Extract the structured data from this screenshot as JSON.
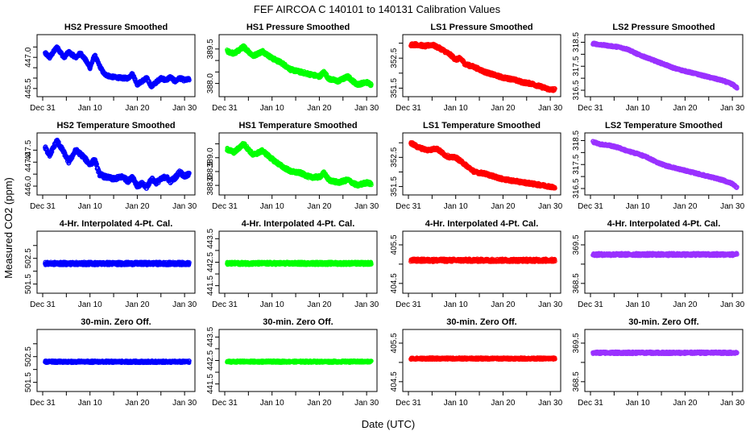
{
  "figure": {
    "title": "FEF   AIRCOA C   140101 to 140131   Calibration Values",
    "xlabel": "Date (UTC)",
    "ylabel": "Measured CO2 (ppm)"
  },
  "colors": {
    "HS2": "#0000ff",
    "HS1": "#00ff00",
    "LS1": "#ff0000",
    "LS2": "#9a32ff"
  },
  "x_axis": {
    "domain_days": [
      0,
      31
    ],
    "ticks": [
      {
        "day": 0,
        "label": "Dec 31"
      },
      {
        "day": 10,
        "label": "Jan 10"
      },
      {
        "day": 20,
        "label": "Jan 20"
      },
      {
        "day": 30,
        "label": "Jan 30"
      }
    ],
    "minor_tick_days": [
      5,
      15,
      25
    ]
  },
  "chart_data": [
    {
      "type": "scatter",
      "title": "HS2 Pressure Smoothed",
      "series": "HS2",
      "ylim": [
        445.3,
        447.9
      ],
      "yticks": [
        445.5,
        447.0
      ],
      "yticklabels": [
        "445.5",
        "447.0"
      ],
      "extra_yticks": [
        446.0,
        446.5,
        447.5
      ],
      "trend": [
        [
          0.5,
          447.2
        ],
        [
          1.5,
          447.0
        ],
        [
          3,
          447.5
        ],
        [
          4.5,
          447.0
        ],
        [
          5.5,
          447.25
        ],
        [
          7,
          447.0
        ],
        [
          8,
          447.2
        ],
        [
          9,
          446.9
        ],
        [
          10,
          446.5
        ],
        [
          11,
          447.1
        ],
        [
          12,
          446.6
        ],
        [
          13,
          446.2
        ],
        [
          14,
          446.1
        ],
        [
          15,
          446.05
        ],
        [
          17,
          446.0
        ],
        [
          18,
          446.0
        ],
        [
          19,
          446.2
        ],
        [
          20,
          445.7
        ],
        [
          21,
          445.85
        ],
        [
          22,
          446.0
        ],
        [
          23,
          445.6
        ],
        [
          24,
          445.8
        ],
        [
          25,
          446.0
        ],
        [
          26,
          445.9
        ],
        [
          27,
          446.05
        ],
        [
          28,
          445.85
        ],
        [
          29,
          446.0
        ],
        [
          30,
          445.9
        ],
        [
          31,
          445.95
        ]
      ],
      "noise": 0.07
    },
    {
      "type": "scatter",
      "title": "HS1 Pressure Smoothed",
      "series": "HS1",
      "ylim": [
        387.6,
        389.95
      ],
      "yticks": [
        388.0,
        389.5
      ],
      "yticklabels": [
        "388.0",
        "389.5"
      ],
      "extra_yticks": [
        388.5,
        389.0
      ],
      "trend": [
        [
          0.5,
          389.4
        ],
        [
          2,
          389.3
        ],
        [
          4,
          389.6
        ],
        [
          6,
          389.2
        ],
        [
          8,
          389.4
        ],
        [
          10,
          389.1
        ],
        [
          12,
          388.9
        ],
        [
          14,
          388.6
        ],
        [
          16,
          388.5
        ],
        [
          18,
          388.4
        ],
        [
          20,
          388.3
        ],
        [
          21,
          388.5
        ],
        [
          22,
          388.2
        ],
        [
          24,
          388.1
        ],
        [
          26,
          388.3
        ],
        [
          28,
          387.95
        ],
        [
          30,
          388.05
        ],
        [
          31,
          387.95
        ]
      ],
      "noise": 0.07
    },
    {
      "type": "scatter",
      "title": "LS1 Pressure Smoothed",
      "series": "LS1",
      "ylim": [
        351.35,
        353.15
      ],
      "yticks": [
        351.5,
        352.5
      ],
      "yticklabels": [
        "351.5",
        "352.5"
      ],
      "extra_yticks": [
        352.0,
        353.0
      ],
      "trend": [
        [
          0.5,
          352.95
        ],
        [
          2,
          352.95
        ],
        [
          3.5,
          352.9
        ],
        [
          5,
          352.95
        ],
        [
          7,
          352.8
        ],
        [
          9,
          352.6
        ],
        [
          10,
          352.45
        ],
        [
          11,
          352.5
        ],
        [
          12,
          352.3
        ],
        [
          14,
          352.2
        ],
        [
          16,
          352.05
        ],
        [
          18,
          351.95
        ],
        [
          20,
          351.85
        ],
        [
          22,
          351.8
        ],
        [
          24,
          351.7
        ],
        [
          26,
          351.65
        ],
        [
          28,
          351.55
        ],
        [
          30,
          351.45
        ],
        [
          31,
          351.45
        ]
      ],
      "noise": 0.05
    },
    {
      "type": "scatter",
      "title": "LS2 Pressure Smoothed",
      "series": "LS2",
      "ylim": [
        316.4,
        318.65
      ],
      "yticks": [
        316.5,
        317.5,
        318.5
      ],
      "yticklabels": [
        "316.5",
        "317.5",
        "318.5"
      ],
      "extra_yticks": [
        317.0,
        318.0
      ],
      "trend": [
        [
          0.5,
          318.45
        ],
        [
          2,
          318.4
        ],
        [
          4,
          318.35
        ],
        [
          6,
          318.3
        ],
        [
          8,
          318.2
        ],
        [
          10,
          318.0
        ],
        [
          12,
          317.85
        ],
        [
          14,
          317.7
        ],
        [
          16,
          317.55
        ],
        [
          18,
          317.4
        ],
        [
          20,
          317.3
        ],
        [
          22,
          317.2
        ],
        [
          24,
          317.1
        ],
        [
          26,
          317.0
        ],
        [
          28,
          316.9
        ],
        [
          30,
          316.75
        ],
        [
          31,
          316.6
        ]
      ],
      "noise": 0.04
    },
    {
      "type": "scatter",
      "title": "HS2 Temperature Smoothed",
      "series": "HS2",
      "ylim": [
        445.8,
        448.05
      ],
      "yticks": [
        446.0,
        447.0,
        447.5
      ],
      "yticklabels": [
        "446.0",
        "447.0",
        "447.5"
      ],
      "extra_yticks": [
        446.5
      ],
      "trend": [
        [
          0.5,
          447.6
        ],
        [
          1.5,
          447.3
        ],
        [
          3,
          447.9
        ],
        [
          4.5,
          447.4
        ],
        [
          5.5,
          447.0
        ],
        [
          7,
          447.5
        ],
        [
          8.5,
          447.25
        ],
        [
          10,
          446.9
        ],
        [
          11,
          447.1
        ],
        [
          12,
          446.5
        ],
        [
          13,
          446.4
        ],
        [
          15,
          446.3
        ],
        [
          17,
          446.4
        ],
        [
          18,
          446.2
        ],
        [
          19,
          446.4
        ],
        [
          20,
          446.0
        ],
        [
          21,
          446.1
        ],
        [
          22,
          445.95
        ],
        [
          23,
          446.3
        ],
        [
          24,
          446.15
        ],
        [
          26,
          446.4
        ],
        [
          27,
          446.2
        ],
        [
          28,
          446.35
        ],
        [
          29,
          446.6
        ],
        [
          30,
          446.4
        ],
        [
          31,
          446.5
        ]
      ],
      "noise": 0.08
    },
    {
      "type": "scatter",
      "title": "HS1 Temperature Smoothed",
      "series": "HS1",
      "ylim": [
        387.8,
        389.75
      ],
      "yticks": [
        388.0,
        388.5,
        389.0
      ],
      "yticklabels": [
        "388.0",
        "388.5",
        "389.0"
      ],
      "extra_yticks": [
        389.5
      ],
      "trend": [
        [
          0.5,
          389.3
        ],
        [
          2,
          389.2
        ],
        [
          4,
          389.5
        ],
        [
          6,
          389.1
        ],
        [
          8,
          389.25
        ],
        [
          10,
          388.95
        ],
        [
          12,
          388.7
        ],
        [
          14,
          388.5
        ],
        [
          16,
          388.45
        ],
        [
          18,
          388.3
        ],
        [
          20,
          388.3
        ],
        [
          21,
          388.45
        ],
        [
          22,
          388.2
        ],
        [
          24,
          388.1
        ],
        [
          26,
          388.2
        ],
        [
          28,
          388.0
        ],
        [
          30,
          388.1
        ],
        [
          31,
          388.05
        ]
      ],
      "noise": 0.06
    },
    {
      "type": "scatter",
      "title": "LS1 Temperature Smoothed",
      "series": "LS1",
      "ylim": [
        351.35,
        353.2
      ],
      "yticks": [
        351.5,
        352.5
      ],
      "yticklabels": [
        "351.5",
        "352.5"
      ],
      "extra_yticks": [
        352.0,
        353.0
      ],
      "trend": [
        [
          0.5,
          353.0
        ],
        [
          2,
          352.85
        ],
        [
          4,
          352.75
        ],
        [
          6,
          352.8
        ],
        [
          8,
          352.55
        ],
        [
          9,
          352.5
        ],
        [
          10,
          352.5
        ],
        [
          12,
          352.25
        ],
        [
          14,
          352.0
        ],
        [
          16,
          351.95
        ],
        [
          18,
          351.85
        ],
        [
          20,
          351.75
        ],
        [
          22,
          351.7
        ],
        [
          24,
          351.65
        ],
        [
          26,
          351.6
        ],
        [
          28,
          351.55
        ],
        [
          30,
          351.5
        ],
        [
          31,
          351.45
        ]
      ],
      "noise": 0.05
    },
    {
      "type": "scatter",
      "title": "LS2 Temperature Smoothed",
      "series": "LS2",
      "ylim": [
        316.4,
        318.65
      ],
      "yticks": [
        316.5,
        317.5,
        318.5
      ],
      "yticklabels": [
        "316.5",
        "317.5",
        "318.5"
      ],
      "extra_yticks": [
        317.0,
        318.0
      ],
      "trend": [
        [
          0.5,
          318.45
        ],
        [
          2,
          318.35
        ],
        [
          4,
          318.3
        ],
        [
          6,
          318.2
        ],
        [
          8,
          318.05
        ],
        [
          10,
          317.95
        ],
        [
          12,
          317.8
        ],
        [
          14,
          317.6
        ],
        [
          16,
          317.45
        ],
        [
          18,
          317.35
        ],
        [
          20,
          317.25
        ],
        [
          22,
          317.15
        ],
        [
          24,
          317.05
        ],
        [
          26,
          316.95
        ],
        [
          28,
          316.85
        ],
        [
          30,
          316.7
        ],
        [
          31,
          316.55
        ]
      ],
      "noise": 0.04
    },
    {
      "type": "scatter",
      "title": "4-Hr. Interpolated 4-Pt. Cal.",
      "series": "HS2",
      "ylim": [
        501.3,
        503.4
      ],
      "yticks": [
        501.5,
        502.5
      ],
      "yticklabels": [
        "501.5",
        "502.5"
      ],
      "extra_yticks": [
        502.0,
        503.0
      ],
      "trend": [
        [
          0.5,
          502.3
        ],
        [
          31,
          502.3
        ]
      ],
      "noise": 0.06
    },
    {
      "type": "scatter",
      "title": "4-Hr. Interpolated 4-Pt. Cal.",
      "series": "HS1",
      "ylim": [
        441.35,
        443.65
      ],
      "yticks": [
        441.5,
        442.5,
        443.5
      ],
      "yticklabels": [
        "441.5",
        "442.5",
        "443.5"
      ],
      "extra_yticks": [
        442.0,
        443.0
      ],
      "trend": [
        [
          0.5,
          442.45
        ],
        [
          31,
          442.45
        ]
      ],
      "noise": 0.06
    },
    {
      "type": "scatter",
      "title": "4-Hr. Interpolated 4-Pt. Cal.",
      "series": "LS1",
      "ylim": [
        404.35,
        405.75
      ],
      "yticks": [
        404.5,
        405.5
      ],
      "yticklabels": [
        "404.5",
        "405.5"
      ],
      "extra_yticks": [
        405.0
      ],
      "trend": [
        [
          0.5,
          405.1
        ],
        [
          31,
          405.1
        ]
      ],
      "noise": 0.04
    },
    {
      "type": "scatter",
      "title": "4-Hr. Interpolated 4-Pt. Cal.",
      "series": "LS2",
      "ylim": [
        368.35,
        369.75
      ],
      "yticks": [
        368.5,
        369.5
      ],
      "yticklabels": [
        "368.5",
        "369.5"
      ],
      "extra_yticks": [
        369.0
      ],
      "trend": [
        [
          0.5,
          369.25
        ],
        [
          31,
          369.25
        ]
      ],
      "noise": 0.035
    },
    {
      "type": "scatter",
      "title": "30-min. Zero Off.",
      "series": "HS2",
      "ylim": [
        501.3,
        503.4
      ],
      "yticks": [
        501.5,
        502.5
      ],
      "yticklabels": [
        "501.5",
        "502.5"
      ],
      "extra_yticks": [
        502.0,
        503.0
      ],
      "trend": [
        [
          0.5,
          502.3
        ],
        [
          31,
          502.3
        ]
      ],
      "noise": 0.04
    },
    {
      "type": "scatter",
      "title": "30-min. Zero Off.",
      "series": "HS1",
      "ylim": [
        441.35,
        443.65
      ],
      "yticks": [
        441.5,
        442.5,
        443.5
      ],
      "yticklabels": [
        "441.5",
        "442.5",
        "443.5"
      ],
      "extra_yticks": [
        442.0,
        443.0
      ],
      "trend": [
        [
          0.5,
          442.45
        ],
        [
          31,
          442.45
        ]
      ],
      "noise": 0.04
    },
    {
      "type": "scatter",
      "title": "30-min. Zero Off.",
      "series": "LS1",
      "ylim": [
        404.35,
        405.75
      ],
      "yticks": [
        404.5,
        405.5
      ],
      "yticklabels": [
        "404.5",
        "405.5"
      ],
      "extra_yticks": [
        405.0
      ],
      "trend": [
        [
          0.5,
          405.1
        ],
        [
          31,
          405.1
        ]
      ],
      "noise": 0.025
    },
    {
      "type": "scatter",
      "title": "30-min. Zero Off.",
      "series": "LS2",
      "ylim": [
        368.35,
        369.75
      ],
      "yticks": [
        368.5,
        369.5
      ],
      "yticklabels": [
        "368.5",
        "369.5"
      ],
      "extra_yticks": [
        369.0
      ],
      "trend": [
        [
          0.5,
          369.25
        ],
        [
          31,
          369.25
        ]
      ],
      "noise": 0.03
    }
  ]
}
